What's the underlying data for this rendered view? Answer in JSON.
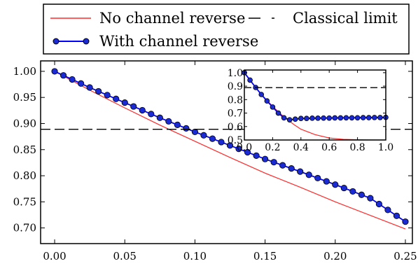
{
  "legend": {
    "entries": [
      {
        "label": "No channel reverse",
        "style": "red-line"
      },
      {
        "label": "Classical limit",
        "style": "black-dashed"
      },
      {
        "label": "With channel reverse",
        "style": "blue-line-markers"
      }
    ]
  },
  "colors": {
    "no_reverse": "#ff2a2a",
    "with_reverse_line": "#0000ff",
    "with_reverse_marker": "#1a2bd6",
    "classical": "#000000"
  },
  "chart_data": [
    {
      "type": "line",
      "title": "",
      "xlabel": "",
      "ylabel": "",
      "xlim": [
        -0.01,
        0.255
      ],
      "ylim": [
        0.67,
        1.02
      ],
      "xticks": [
        "0.00",
        "0.05",
        "0.10",
        "0.15",
        "0.20",
        "0.25"
      ],
      "yticks": [
        "0.70",
        "0.75",
        "0.80",
        "0.85",
        "0.90",
        "0.95",
        "1.00"
      ],
      "grid": false,
      "legend_position": "above",
      "series": [
        {
          "name": "No channel reverse",
          "x": [
            0.0,
            0.025,
            0.05,
            0.075,
            0.1,
            0.125,
            0.15,
            0.175,
            0.2,
            0.225,
            0.25
          ],
          "y": [
            1.0,
            0.964,
            0.93,
            0.897,
            0.866,
            0.835,
            0.805,
            0.778,
            0.75,
            0.724,
            0.698
          ]
        },
        {
          "name": "With channel reverse",
          "x": [
            0.0,
            0.025,
            0.05,
            0.075,
            0.1,
            0.125,
            0.15,
            0.175,
            0.2,
            0.225,
            0.25
          ],
          "y": [
            1.0,
            0.969,
            0.94,
            0.911,
            0.884,
            0.858,
            0.832,
            0.808,
            0.783,
            0.757,
            0.712
          ],
          "markers": true
        },
        {
          "name": "Classical limit",
          "x": [
            -0.01,
            0.255
          ],
          "y": [
            0.889,
            0.889
          ],
          "dashed": true
        }
      ]
    },
    {
      "type": "line",
      "title": "",
      "xlabel": "",
      "ylabel": "",
      "inset": true,
      "xlim": [
        0.0,
        1.0
      ],
      "ylim": [
        0.5,
        1.02
      ],
      "xticks": [
        "0.0",
        "0.2",
        "0.4",
        "0.6",
        "0.8",
        "1.0"
      ],
      "yticks": [
        "0.5",
        "0.6",
        "0.7",
        "0.8",
        "0.9",
        "1.0"
      ],
      "grid": false,
      "series": [
        {
          "name": "No channel reverse",
          "x": [
            0.0,
            0.05,
            0.1,
            0.15,
            0.2,
            0.25,
            0.3,
            0.35,
            0.4,
            0.5,
            0.6,
            0.7,
            0.8,
            0.9,
            1.0
          ],
          "y": [
            1.0,
            0.93,
            0.865,
            0.805,
            0.75,
            0.7,
            0.655,
            0.615,
            0.58,
            0.54,
            0.515,
            0.505,
            0.502,
            0.501,
            0.5
          ]
        },
        {
          "name": "With channel reverse",
          "x": [
            0.0,
            0.04,
            0.08,
            0.12,
            0.16,
            0.2,
            0.24,
            0.28,
            0.32,
            0.36,
            0.4,
            0.44,
            0.48,
            0.52,
            0.56,
            0.6,
            0.64,
            0.68,
            0.72,
            0.76,
            0.8,
            0.84,
            0.88,
            0.92,
            0.96,
            1.0
          ],
          "y": [
            1.0,
            0.945,
            0.89,
            0.838,
            0.79,
            0.745,
            0.7,
            0.665,
            0.65,
            0.655,
            0.66,
            0.66,
            0.662,
            0.662,
            0.663,
            0.663,
            0.664,
            0.664,
            0.665,
            0.665,
            0.665,
            0.666,
            0.666,
            0.667,
            0.667,
            0.668
          ],
          "markers": true
        },
        {
          "name": "Classical limit",
          "x": [
            0.0,
            1.0
          ],
          "y": [
            0.889,
            0.889
          ],
          "dashed": true
        }
      ]
    }
  ]
}
